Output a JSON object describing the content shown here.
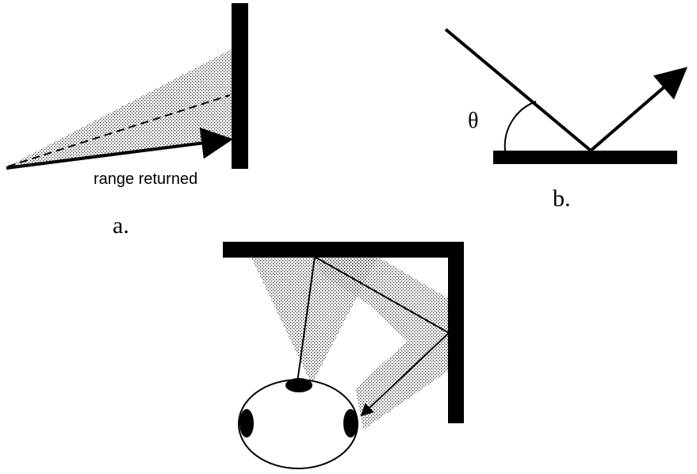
{
  "panel_a": {
    "caption_text": "range returned",
    "panel_label": "a."
  },
  "panel_b": {
    "angle_symbol": "θ",
    "panel_label": "b."
  },
  "panel_c": {},
  "colors": {
    "ink": "#000000",
    "stipple": "#000000",
    "background": "#ffffff"
  },
  "icons": [
    "sonar-beam",
    "wall",
    "angle-arc",
    "robot-body",
    "sonar-transducer"
  ]
}
